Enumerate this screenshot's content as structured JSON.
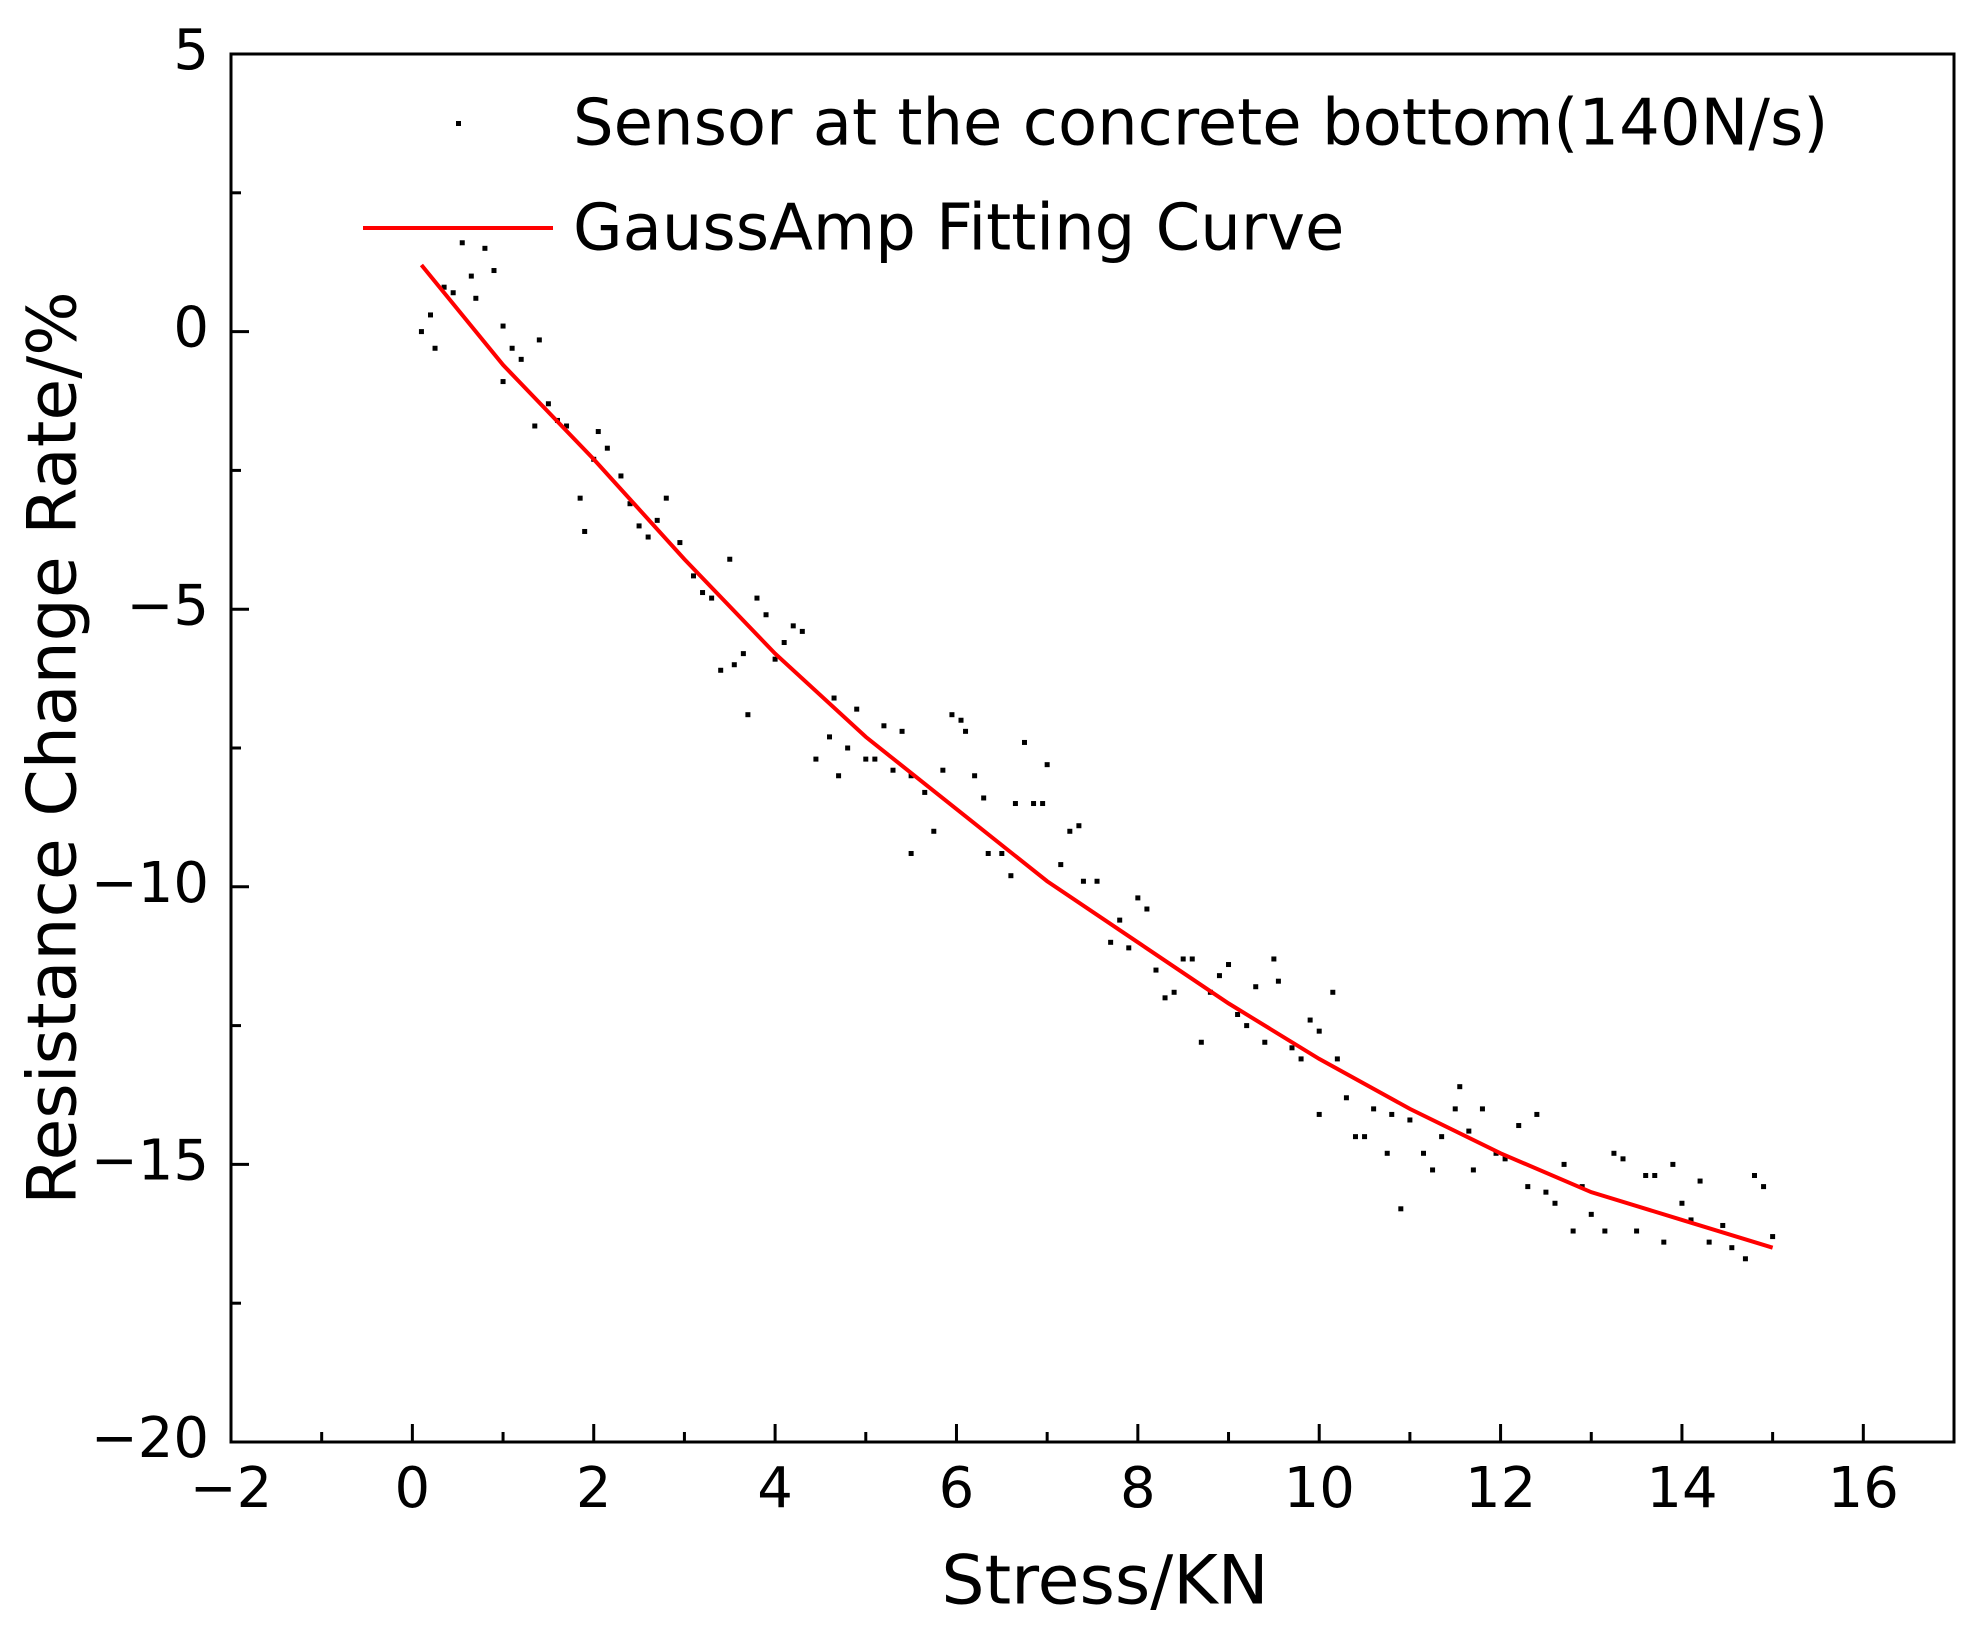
{
  "chart_data": {
    "type": "scatter",
    "x_label": "Stress/KN",
    "y_label": "Resistance Change Rate/%",
    "xlim": [
      -2,
      17
    ],
    "ylim": [
      -20,
      5
    ],
    "xticks": [
      {
        "value": -2,
        "label": "−2"
      },
      0,
      2,
      4,
      6,
      8,
      10,
      12,
      14,
      16
    ],
    "yticks": [
      {
        "value": -20,
        "label": "−20"
      },
      {
        "value": -15,
        "label": "−15"
      },
      {
        "value": -10,
        "label": "−10"
      },
      {
        "value": -5,
        "label": "−5"
      },
      0,
      5
    ],
    "xminorticks": [
      -1,
      1,
      3,
      5,
      7,
      9,
      11,
      13,
      15
    ],
    "yminorticks": [
      -17.5,
      -12.5,
      -7.5,
      -2.5,
      2.5
    ],
    "legend": "upper right",
    "series": [
      {
        "name": "Sensor at the concrete bottom(140N/s)",
        "type": "scatter",
        "color": "#000000",
        "x": [
          0.1,
          0.2,
          0.25,
          0.35,
          0.45,
          0.55,
          0.65,
          0.7,
          0.8,
          0.9,
          1.0,
          1.0,
          1.1,
          1.2,
          1.35,
          1.4,
          1.5,
          1.6,
          1.7,
          1.85,
          1.9,
          2.0,
          2.05,
          2.15,
          2.3,
          2.4,
          2.5,
          2.6,
          2.7,
          2.8,
          2.95,
          3.1,
          3.2,
          3.3,
          3.4,
          3.5,
          3.55,
          3.65,
          3.7,
          3.8,
          3.9,
          4.0,
          4.1,
          4.2,
          4.3,
          4.45,
          4.6,
          4.65,
          4.7,
          4.8,
          4.9,
          5.0,
          5.1,
          5.2,
          5.3,
          5.4,
          5.5,
          5.5,
          5.65,
          5.75,
          5.85,
          5.95,
          6.05,
          6.1,
          6.2,
          6.3,
          6.35,
          6.5,
          6.6,
          6.65,
          6.75,
          6.85,
          6.95,
          7.0,
          7.15,
          7.25,
          7.35,
          7.4,
          7.55,
          7.7,
          7.8,
          7.9,
          8.0,
          8.1,
          8.2,
          8.3,
          8.4,
          8.5,
          8.6,
          8.7,
          8.8,
          8.9,
          9.0,
          9.1,
          9.2,
          9.3,
          9.4,
          9.5,
          9.55,
          9.7,
          9.8,
          9.9,
          10.0,
          10.0,
          10.15,
          10.2,
          10.3,
          10.4,
          10.5,
          10.6,
          10.75,
          10.8,
          10.9,
          11.0,
          11.15,
          11.25,
          11.35,
          11.5,
          11.55,
          11.65,
          11.7,
          11.8,
          11.95,
          12.05,
          12.2,
          12.3,
          12.4,
          12.5,
          12.6,
          12.7,
          12.8,
          12.9,
          13.0,
          13.15,
          13.25,
          13.35,
          13.5,
          13.6,
          13.7,
          13.8,
          13.9,
          14.0,
          14.1,
          14.2,
          14.3,
          14.45,
          14.55,
          14.7,
          14.8,
          14.9,
          15.0
        ],
        "values": [
          0,
          0.3,
          -0.3,
          0.8,
          0.7,
          1.6,
          1.0,
          0.6,
          1.5,
          1.1,
          0.1,
          -0.9,
          -0.3,
          -0.5,
          -1.7,
          -0.15,
          -1.3,
          -1.6,
          -1.7,
          -3.0,
          -3.6,
          -2.3,
          -1.8,
          -2.1,
          -2.6,
          -3.1,
          -3.5,
          -3.7,
          -3.4,
          -3.0,
          -3.8,
          -4.4,
          -4.7,
          -4.8,
          -6.1,
          -4.1,
          -6.0,
          -5.8,
          -6.9,
          -4.8,
          -5.1,
          -5.9,
          -5.6,
          -5.3,
          -5.4,
          -7.7,
          -7.3,
          -6.6,
          -8.0,
          -7.5,
          -6.8,
          -7.7,
          -7.7,
          -7.1,
          -7.9,
          -7.2,
          -9.4,
          -8.0,
          -8.3,
          -9.0,
          -7.9,
          -6.9,
          -7.0,
          -7.2,
          -8.0,
          -8.4,
          -9.4,
          -9.4,
          -9.8,
          -8.5,
          -7.4,
          -8.5,
          -8.5,
          -7.8,
          -9.6,
          -9.0,
          -8.9,
          -9.9,
          -9.9,
          -11.0,
          -10.6,
          -11.1,
          -10.2,
          -10.4,
          -11.5,
          -12.0,
          -11.9,
          -11.3,
          -11.3,
          -12.8,
          -11.9,
          -11.6,
          -11.4,
          -12.3,
          -12.5,
          -11.8,
          -12.8,
          -11.3,
          -11.7,
          -12.9,
          -13.1,
          -12.4,
          -12.6,
          -14.1,
          -11.9,
          -13.1,
          -13.8,
          -14.5,
          -14.5,
          -14.0,
          -14.8,
          -14.1,
          -15.8,
          -14.2,
          -14.8,
          -15.1,
          -14.5,
          -14.0,
          -13.6,
          -14.4,
          -15.1,
          -14.0,
          -14.8,
          -14.9,
          -14.3,
          -15.4,
          -14.1,
          -15.5,
          -15.7,
          -15.0,
          -16.2,
          -15.4,
          -15.9,
          -16.2,
          -14.8,
          -14.9,
          -16.2,
          -15.2,
          -15.2,
          -16.4,
          -15.0,
          -15.7,
          -16.0,
          -15.3,
          -16.4,
          -16.1,
          -16.5,
          -16.7,
          -15.2,
          -15.4,
          -16.3
        ]
      },
      {
        "name": "GaussAmp Fitting Curve",
        "type": "line",
        "color": "#ff0000",
        "x": [
          0.1,
          1,
          2,
          3,
          4,
          5,
          6,
          7,
          8,
          9,
          10,
          11,
          12,
          13,
          14,
          15
        ],
        "values": [
          1.2,
          -0.6,
          -2.3,
          -4.1,
          -5.8,
          -7.3,
          -8.6,
          -9.9,
          -11.0,
          -12.1,
          -13.1,
          -14.0,
          -14.8,
          -15.5,
          -16.0,
          -16.5
        ]
      }
    ]
  }
}
